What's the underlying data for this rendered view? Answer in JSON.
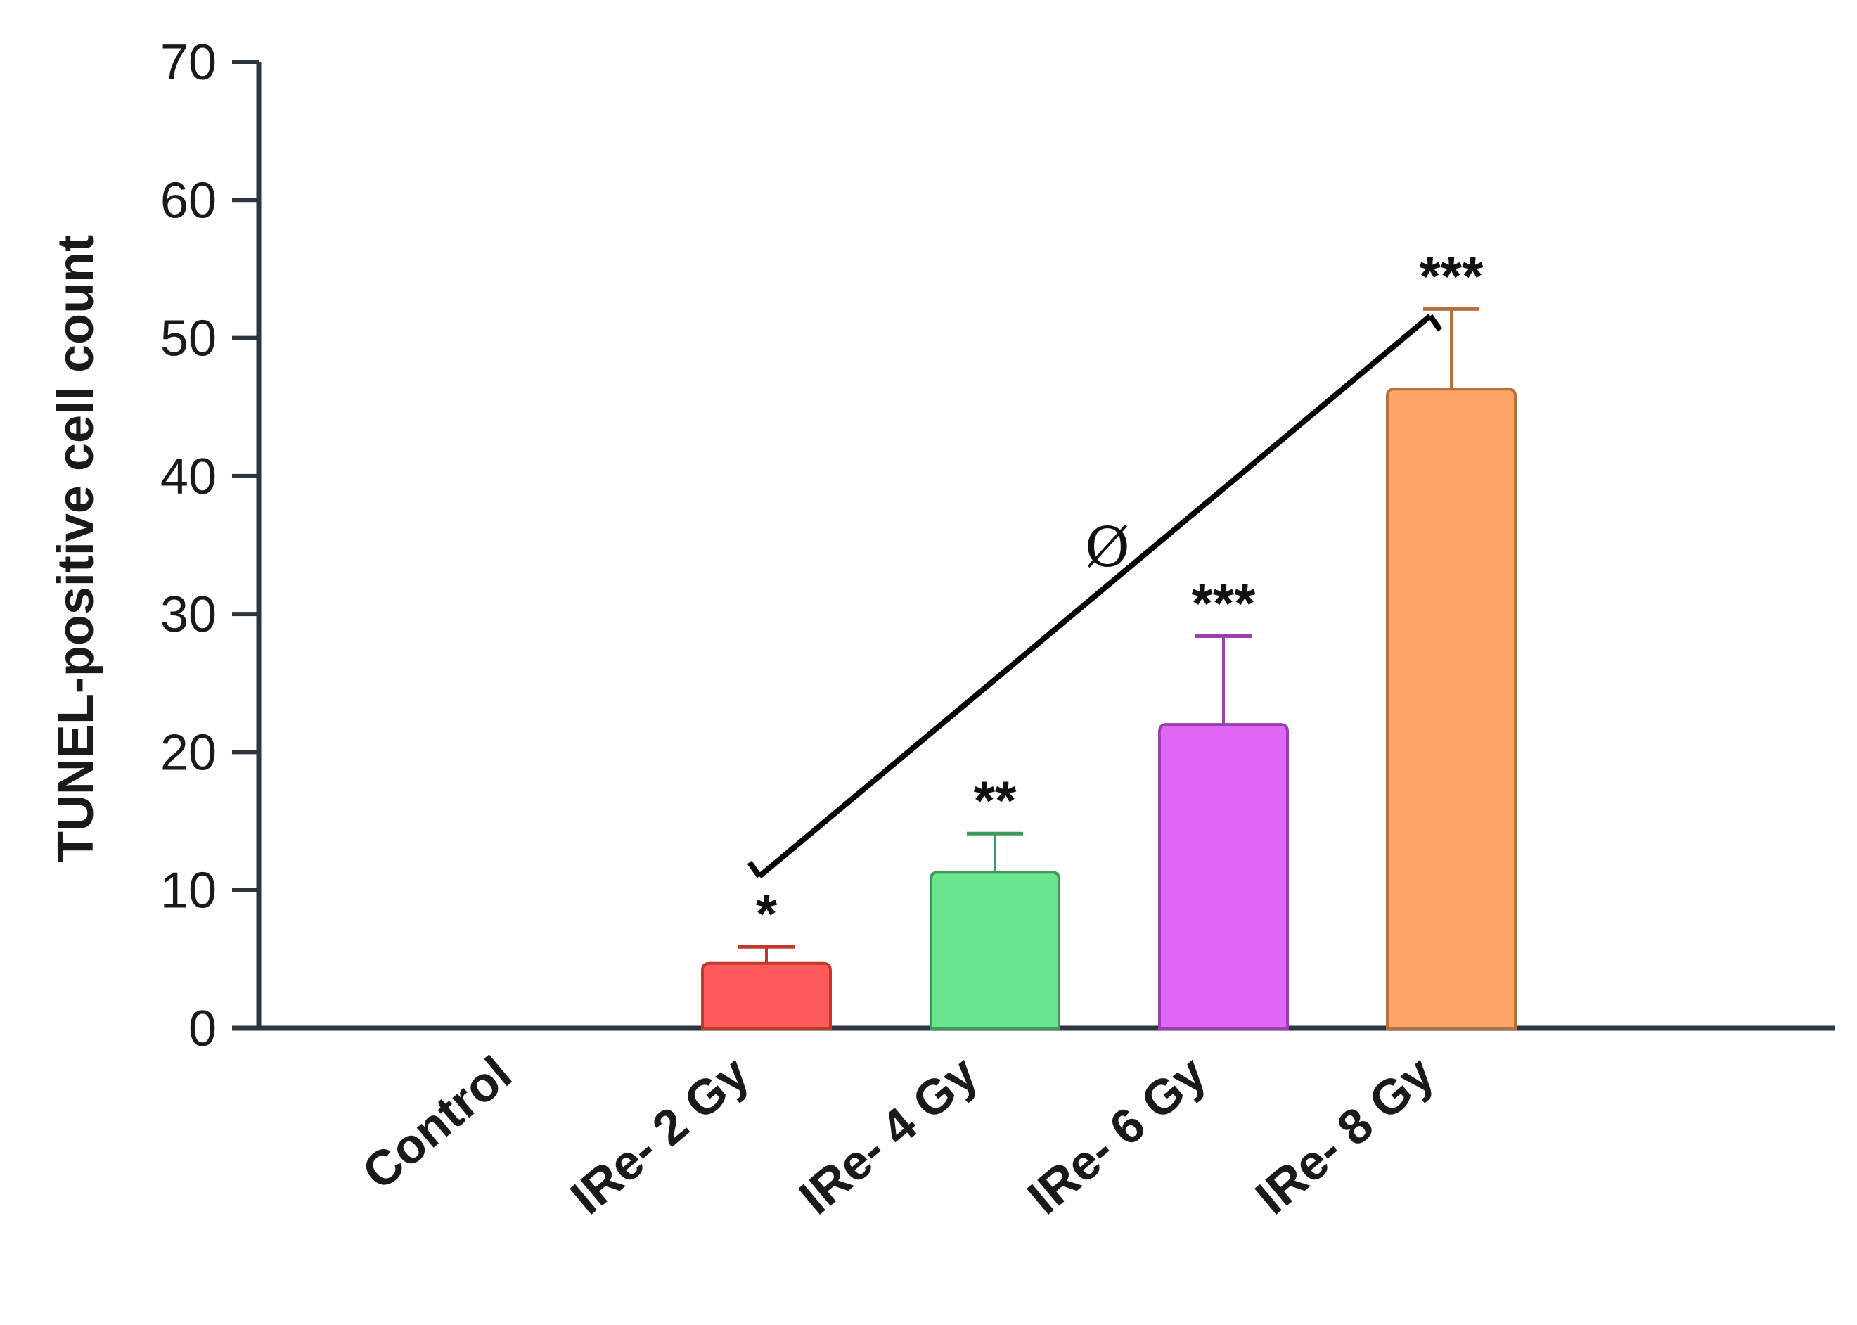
{
  "chart_data": {
    "type": "bar",
    "categories": [
      "Control",
      "IRe- 2 Gy",
      "IRe- 4 Gy",
      "IRe- 6 Gy",
      "IRe- 8 Gy"
    ],
    "values": [
      0,
      4.7,
      11.3,
      22.0,
      46.3
    ],
    "errors": [
      0,
      1.2,
      2.8,
      6.4,
      5.8
    ],
    "colors": [
      "#ff5a5a",
      "#ff5a5a",
      "#6be58e",
      "#e066f5",
      "#fca566"
    ],
    "edge_colors": [
      "#c0392b",
      "#c0392b",
      "#3d9a5a",
      "#9b3fb0",
      "#b5703f"
    ],
    "significance": [
      "",
      "*",
      "**",
      "***",
      "***"
    ],
    "bracket": {
      "from": "IRe- 2 Gy",
      "to": "IRe- 8 Gy",
      "label": "Ø"
    },
    "title": "",
    "xlabel": "",
    "ylabel": "TUNEL-positive cell count",
    "ylim": [
      0,
      70
    ],
    "yticks": [
      0,
      10,
      20,
      30,
      40,
      50,
      60,
      70
    ],
    "grid": false,
    "axis_color": "#2b3440"
  }
}
